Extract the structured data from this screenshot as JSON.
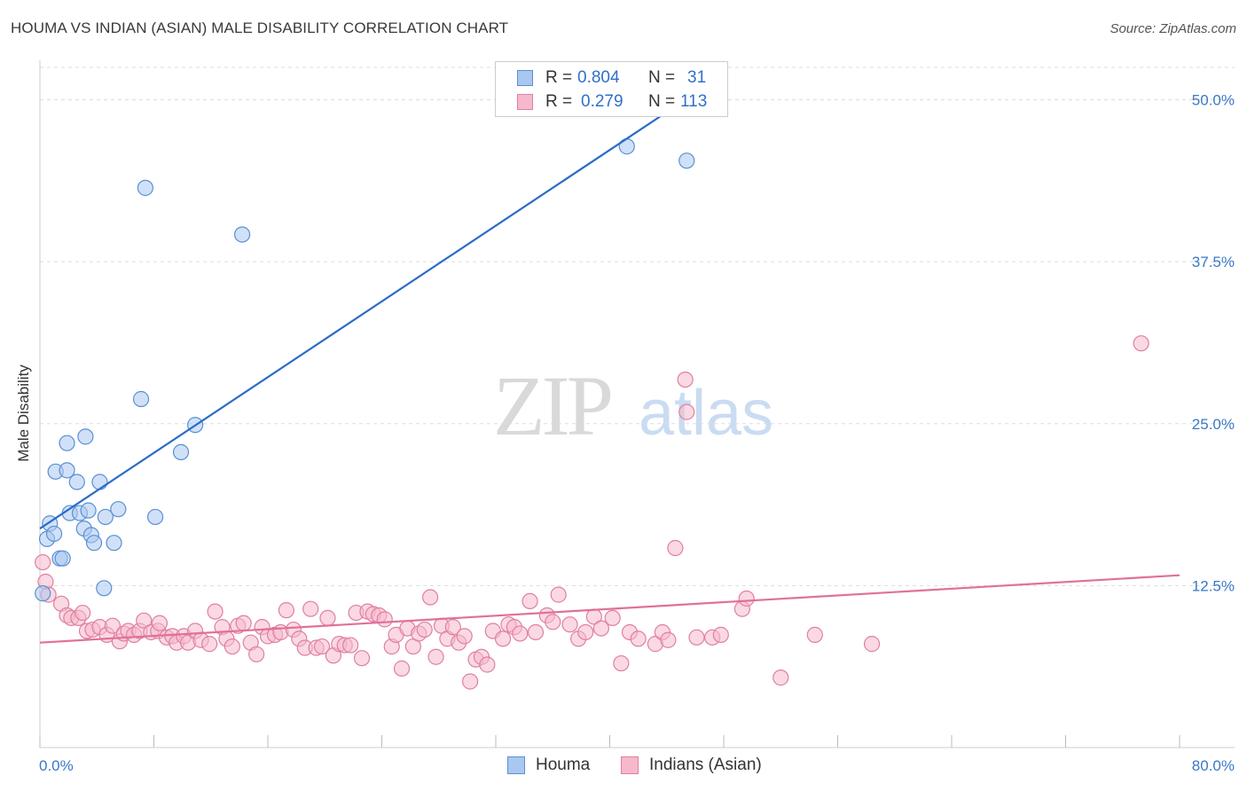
{
  "title": "HOUMA VS INDIAN (ASIAN) MALE DISABILITY CORRELATION CHART",
  "source": "Source: ZipAtlas.com",
  "watermark": {
    "zip": "ZIP",
    "atlas": "atlas"
  },
  "colors": {
    "houma_fill": "#a9c8f0",
    "houma_stroke": "#5b8fd4",
    "houma_line": "#2a6cc8",
    "indian_fill": "#f6b9cc",
    "indian_stroke": "#e07fa0",
    "indian_line": "#e0709a",
    "tick_label": "#3a78c8",
    "grid": "#dddddd"
  },
  "legend": {
    "rows": [
      {
        "r_label": "R =",
        "r_value": "0.804",
        "n_label": "N =",
        "n_value": "31"
      },
      {
        "r_label": "R =",
        "r_value": "0.279",
        "n_label": "N =",
        "n_value": "113"
      }
    ]
  },
  "bottom_legend": {
    "houma": "Houma",
    "indian": "Indians (Asian)"
  },
  "chart_data": {
    "type": "scatter",
    "title": "HOUMA VS INDIAN (ASIAN) MALE DISABILITY CORRELATION CHART",
    "xlabel": "",
    "ylabel": "Male Disability",
    "xlim": [
      0,
      80
    ],
    "ylim": [
      0,
      52.5
    ],
    "x_tick_labels": [
      "0.0%",
      "80.0%"
    ],
    "y_ticks": [
      12.5,
      25.0,
      37.5,
      50.0
    ],
    "y_tick_labels": [
      "12.5%",
      "25.0%",
      "37.5%",
      "50.0%"
    ],
    "grid": true,
    "legend_position": "top-center",
    "series": [
      {
        "name": "Houma",
        "r": 0.804,
        "n": 31,
        "trendline": [
          [
            0,
            16.9
          ],
          [
            45.3,
            50.0
          ]
        ],
        "points": [
          [
            0.2,
            11.9
          ],
          [
            0.5,
            16.1
          ],
          [
            0.7,
            17.3
          ],
          [
            1.0,
            16.5
          ],
          [
            1.1,
            21.3
          ],
          [
            1.4,
            14.6
          ],
          [
            1.6,
            14.6
          ],
          [
            1.9,
            23.5
          ],
          [
            1.9,
            21.4
          ],
          [
            2.1,
            18.1
          ],
          [
            2.6,
            20.5
          ],
          [
            2.8,
            18.1
          ],
          [
            3.1,
            16.9
          ],
          [
            3.2,
            24.0
          ],
          [
            3.4,
            18.3
          ],
          [
            3.6,
            16.4
          ],
          [
            3.8,
            15.8
          ],
          [
            4.2,
            20.5
          ],
          [
            4.5,
            12.3
          ],
          [
            4.6,
            17.8
          ],
          [
            5.2,
            15.8
          ],
          [
            5.5,
            18.4
          ],
          [
            7.1,
            26.9
          ],
          [
            7.4,
            43.2
          ],
          [
            8.1,
            17.8
          ],
          [
            9.9,
            22.8
          ],
          [
            10.9,
            24.9
          ],
          [
            14.2,
            39.6
          ],
          [
            41.2,
            46.4
          ],
          [
            45.3,
            50.0
          ],
          [
            45.4,
            45.3
          ]
        ]
      },
      {
        "name": "Indians (Asian)",
        "r": 0.279,
        "n": 113,
        "trendline": [
          [
            0,
            8.1
          ],
          [
            80,
            13.3
          ]
        ],
        "points": [
          [
            0.2,
            14.3
          ],
          [
            0.4,
            12.8
          ],
          [
            0.6,
            11.8
          ],
          [
            1.5,
            11.1
          ],
          [
            1.9,
            10.2
          ],
          [
            2.2,
            10.0
          ],
          [
            2.7,
            10.0
          ],
          [
            3.0,
            10.4
          ],
          [
            3.3,
            9.0
          ],
          [
            3.7,
            9.1
          ],
          [
            4.2,
            9.3
          ],
          [
            4.7,
            8.7
          ],
          [
            5.1,
            9.4
          ],
          [
            5.6,
            8.2
          ],
          [
            5.9,
            8.8
          ],
          [
            6.2,
            9.0
          ],
          [
            6.6,
            8.7
          ],
          [
            7.0,
            9.0
          ],
          [
            7.3,
            9.8
          ],
          [
            7.8,
            8.9
          ],
          [
            8.3,
            9.0
          ],
          [
            8.4,
            9.6
          ],
          [
            8.9,
            8.5
          ],
          [
            9.3,
            8.6
          ],
          [
            9.6,
            8.1
          ],
          [
            10.1,
            8.6
          ],
          [
            10.4,
            8.1
          ],
          [
            10.9,
            9.0
          ],
          [
            11.3,
            8.3
          ],
          [
            11.9,
            8.0
          ],
          [
            12.3,
            10.5
          ],
          [
            12.8,
            9.3
          ],
          [
            13.1,
            8.4
          ],
          [
            13.5,
            7.8
          ],
          [
            13.9,
            9.4
          ],
          [
            14.3,
            9.6
          ],
          [
            14.8,
            8.1
          ],
          [
            15.2,
            7.2
          ],
          [
            15.6,
            9.3
          ],
          [
            16.0,
            8.6
          ],
          [
            16.5,
            8.7
          ],
          [
            16.9,
            8.9
          ],
          [
            17.3,
            10.6
          ],
          [
            17.8,
            9.1
          ],
          [
            18.2,
            8.4
          ],
          [
            18.6,
            7.7
          ],
          [
            19.0,
            10.7
          ],
          [
            19.4,
            7.7
          ],
          [
            19.8,
            7.8
          ],
          [
            20.2,
            10.0
          ],
          [
            20.6,
            7.1
          ],
          [
            21.0,
            8.0
          ],
          [
            21.4,
            7.9
          ],
          [
            21.8,
            7.9
          ],
          [
            22.2,
            10.4
          ],
          [
            22.6,
            6.9
          ],
          [
            23.0,
            10.5
          ],
          [
            23.4,
            10.3
          ],
          [
            23.8,
            10.2
          ],
          [
            24.2,
            9.9
          ],
          [
            24.7,
            7.8
          ],
          [
            25.0,
            8.7
          ],
          [
            25.4,
            6.1
          ],
          [
            25.8,
            9.2
          ],
          [
            26.2,
            7.8
          ],
          [
            26.6,
            8.8
          ],
          [
            27.0,
            9.1
          ],
          [
            27.4,
            11.6
          ],
          [
            27.8,
            7.0
          ],
          [
            28.2,
            9.4
          ],
          [
            28.6,
            8.4
          ],
          [
            29.0,
            9.3
          ],
          [
            29.4,
            8.1
          ],
          [
            29.8,
            8.6
          ],
          [
            30.2,
            5.1
          ],
          [
            30.6,
            6.8
          ],
          [
            31.0,
            7.0
          ],
          [
            31.4,
            6.4
          ],
          [
            31.8,
            9.0
          ],
          [
            32.5,
            8.4
          ],
          [
            32.9,
            9.5
          ],
          [
            33.3,
            9.3
          ],
          [
            33.7,
            8.8
          ],
          [
            34.4,
            11.3
          ],
          [
            34.8,
            8.9
          ],
          [
            35.6,
            10.2
          ],
          [
            36.0,
            9.7
          ],
          [
            36.4,
            11.8
          ],
          [
            37.2,
            9.5
          ],
          [
            37.8,
            8.4
          ],
          [
            38.3,
            8.9
          ],
          [
            38.9,
            10.1
          ],
          [
            39.4,
            9.2
          ],
          [
            40.2,
            10.0
          ],
          [
            40.8,
            6.5
          ],
          [
            41.4,
            8.9
          ],
          [
            42.0,
            8.4
          ],
          [
            43.2,
            8.0
          ],
          [
            43.7,
            8.9
          ],
          [
            44.1,
            8.3
          ],
          [
            44.6,
            15.4
          ],
          [
            45.3,
            28.4
          ],
          [
            45.4,
            25.9
          ],
          [
            46.1,
            8.5
          ],
          [
            47.2,
            8.5
          ],
          [
            47.8,
            8.7
          ],
          [
            49.3,
            10.7
          ],
          [
            49.6,
            11.5
          ],
          [
            52.0,
            5.4
          ],
          [
            54.4,
            8.7
          ],
          [
            58.4,
            8.0
          ],
          [
            77.3,
            31.2
          ]
        ]
      }
    ]
  }
}
